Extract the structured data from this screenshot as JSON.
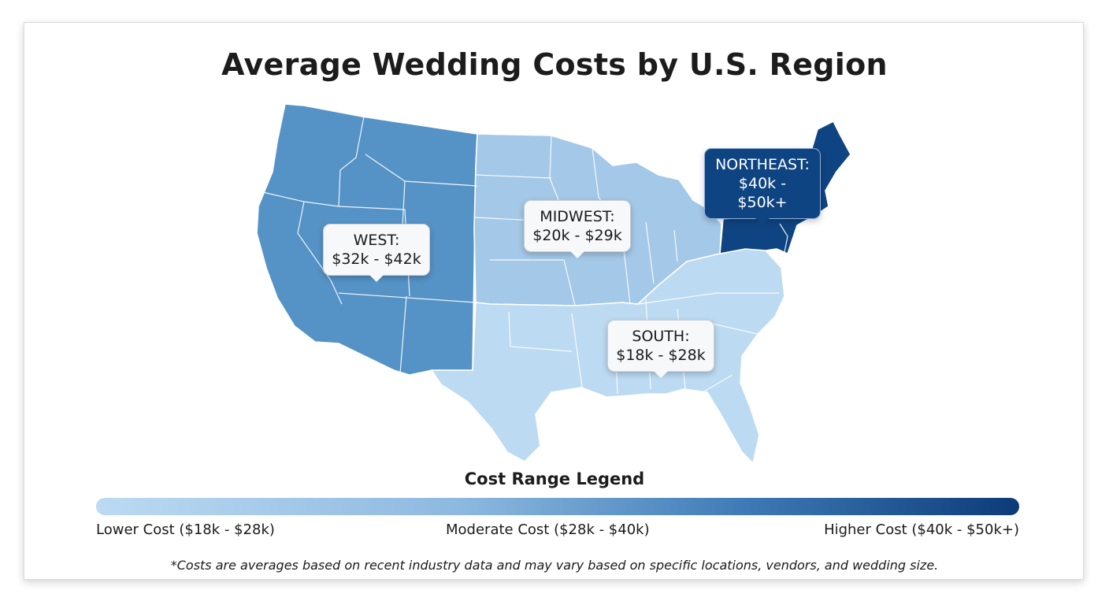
{
  "title": "Average Wedding Costs by U.S. Region",
  "regions": [
    {
      "id": "west",
      "name": "WEST:",
      "range": "$32k - $42k",
      "color": "#5593c6"
    },
    {
      "id": "midwest",
      "name": "MIDWEST:",
      "range": "$20k - $29k",
      "color": "#a4c8e7"
    },
    {
      "id": "south",
      "name": "SOUTH:",
      "range": "$18k - $28k",
      "color": "#bcdaf1"
    },
    {
      "id": "northeast",
      "name": "NORTHEAST:",
      "range": "$40k - $50k+",
      "color": "#0f4482"
    }
  ],
  "legend": {
    "title": "Cost Range Legend",
    "low": "Lower Cost ($18k - $28k)",
    "moderate": "Moderate Cost ($28k - $40k)",
    "high": "Higher Cost ($40k - $50k+)"
  },
  "footnote": "*Costs are averages based on recent industry data and may vary based on specific locations, vendors, and wedding size."
}
